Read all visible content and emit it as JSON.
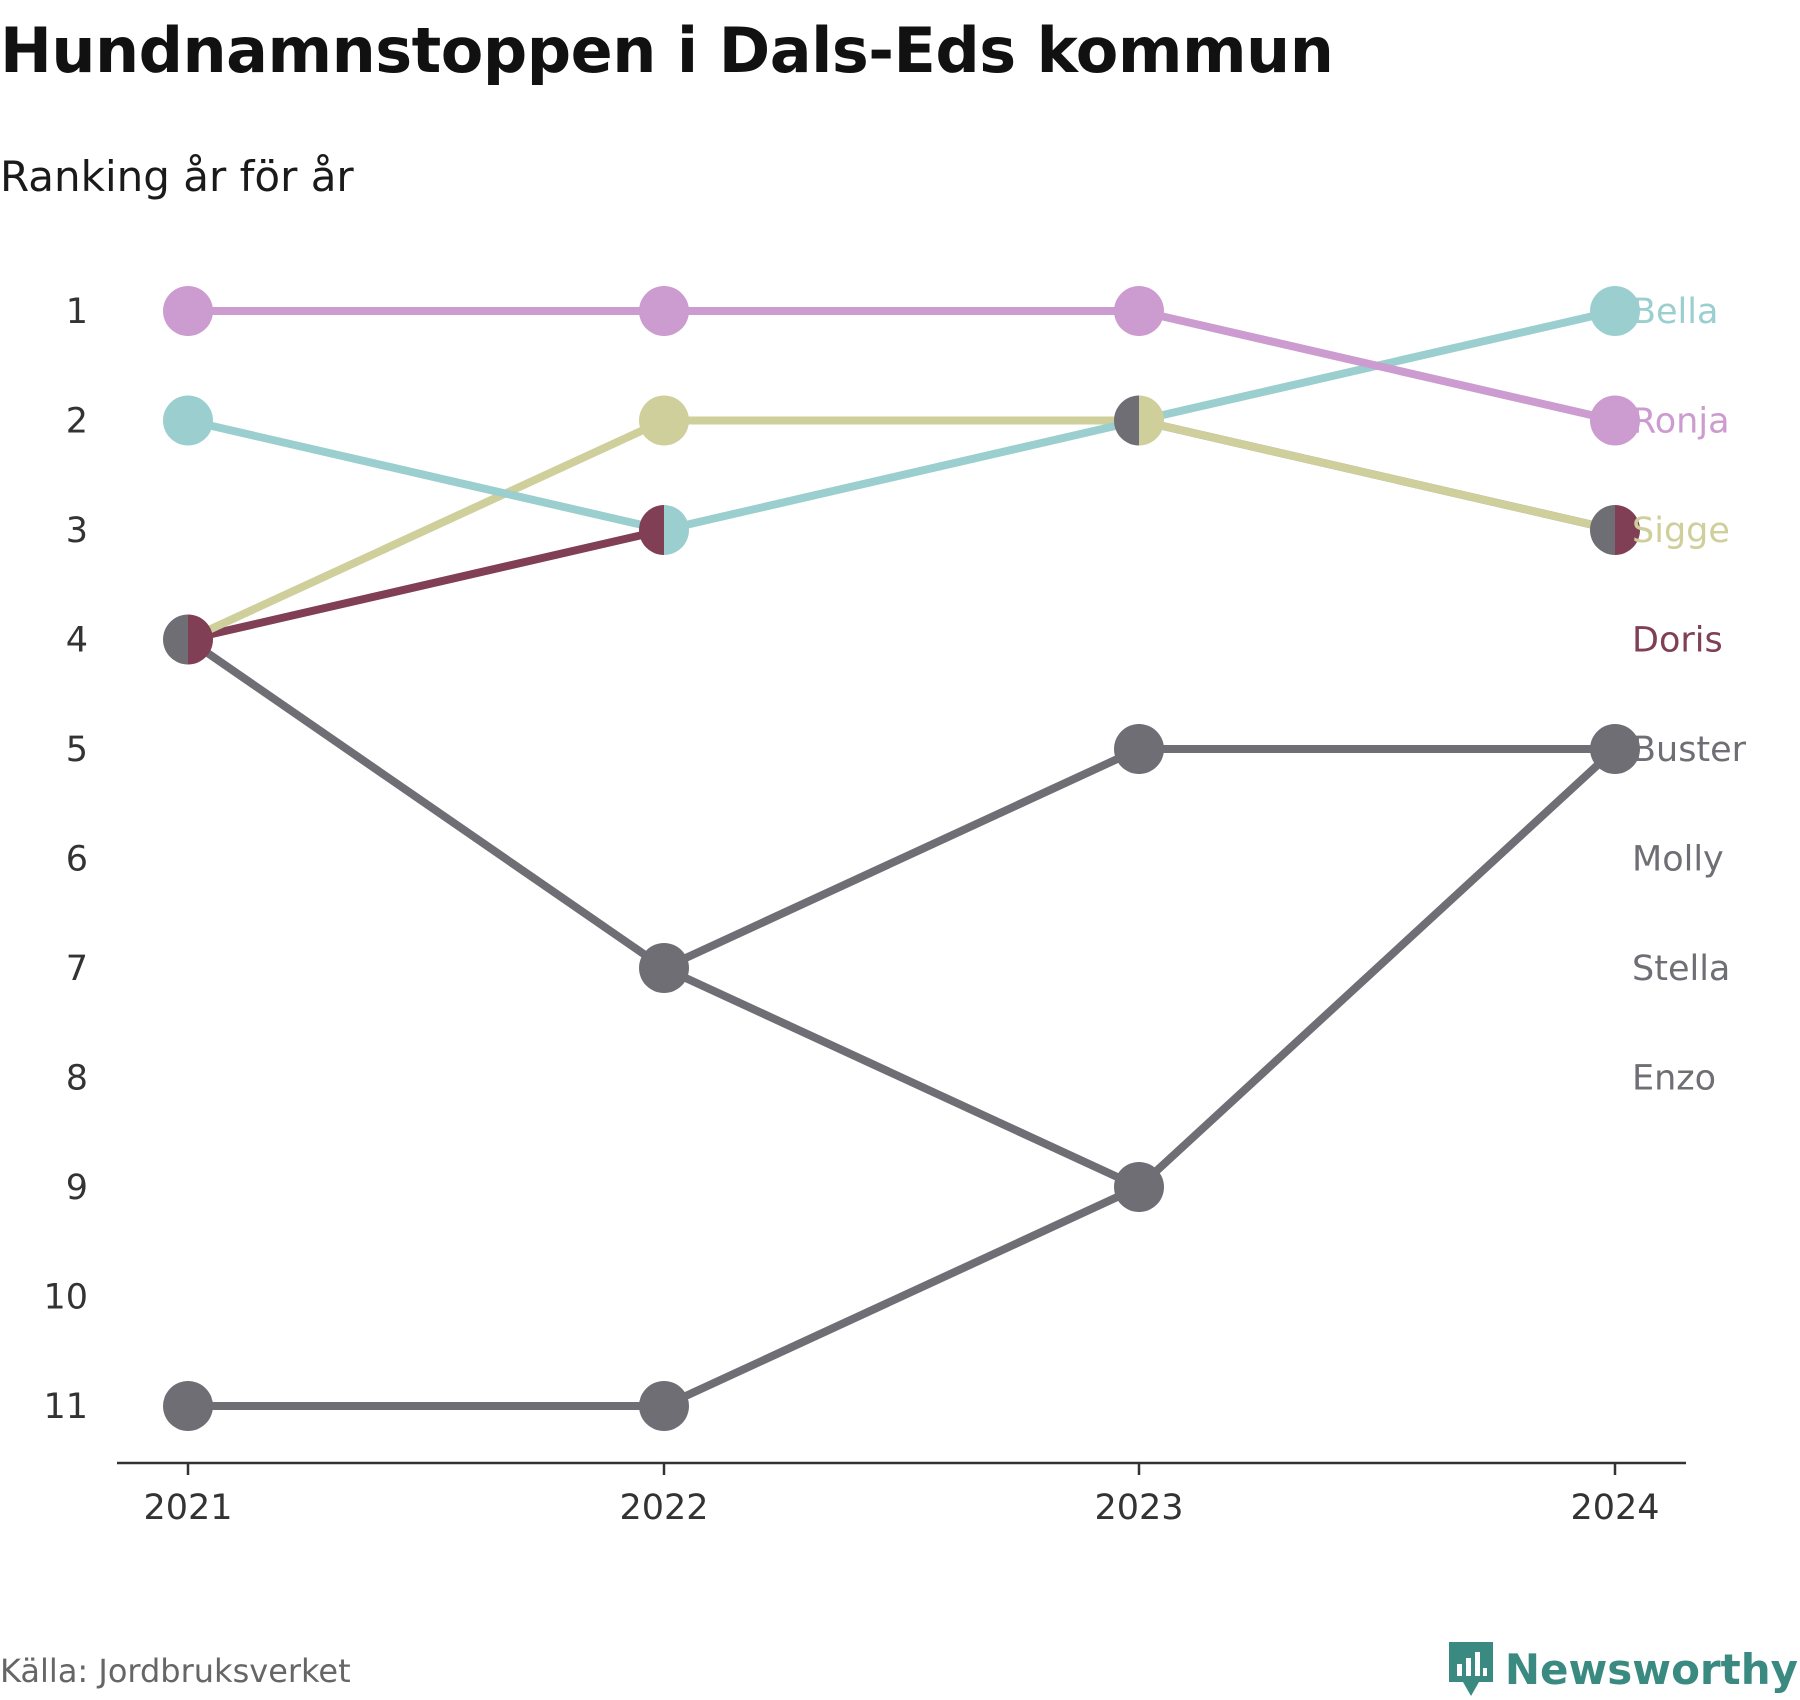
{
  "title": "Hundnamnstoppen i Dals-Eds kommun",
  "subtitle": "Ranking år för år",
  "source": "Källa: Jordbruksverket",
  "brand": "Newsworthy",
  "colors": {
    "Ronja": "#cc9bcf",
    "Bella": "#9bcfcf",
    "Sigge": "#cfcf9b",
    "Doris": "#813f55",
    "Buster": "#6f6e75",
    "Molly": "#6f6e75",
    "Stella": "#6f6e75",
    "Enzo": "#6f6e75",
    "axis": "#333333",
    "brand": "#3a8a82"
  },
  "chart_data": {
    "type": "line",
    "x": [
      "2021",
      "2022",
      "2023",
      "2024"
    ],
    "y_ticks": [
      1,
      2,
      3,
      4,
      5,
      6,
      7,
      8,
      9,
      10,
      11
    ],
    "ylim": [
      1,
      11
    ],
    "y_inverted": true,
    "legend": "end-labels-right",
    "series": [
      {
        "name": "Enzo",
        "values": [
          11,
          11,
          9,
          5
        ]
      },
      {
        "name": "Stella",
        "values": [
          4,
          7,
          9,
          null
        ]
      },
      {
        "name": "Molly",
        "values": [
          null,
          7,
          5,
          5
        ]
      },
      {
        "name": "Buster",
        "values": [
          4,
          null,
          2,
          3
        ]
      },
      {
        "name": "Doris",
        "values": [
          4,
          3,
          null,
          3
        ]
      },
      {
        "name": "Sigge",
        "values": [
          4,
          2,
          2,
          3
        ]
      },
      {
        "name": "Bella",
        "values": [
          2,
          3,
          2,
          1
        ]
      },
      {
        "name": "Ronja",
        "values": [
          1,
          1,
          1,
          2
        ]
      }
    ],
    "end_labels": [
      "Bella",
      "Ronja",
      "Sigge",
      "Doris",
      "Buster",
      "Molly",
      "Stella",
      "Enzo"
    ]
  }
}
